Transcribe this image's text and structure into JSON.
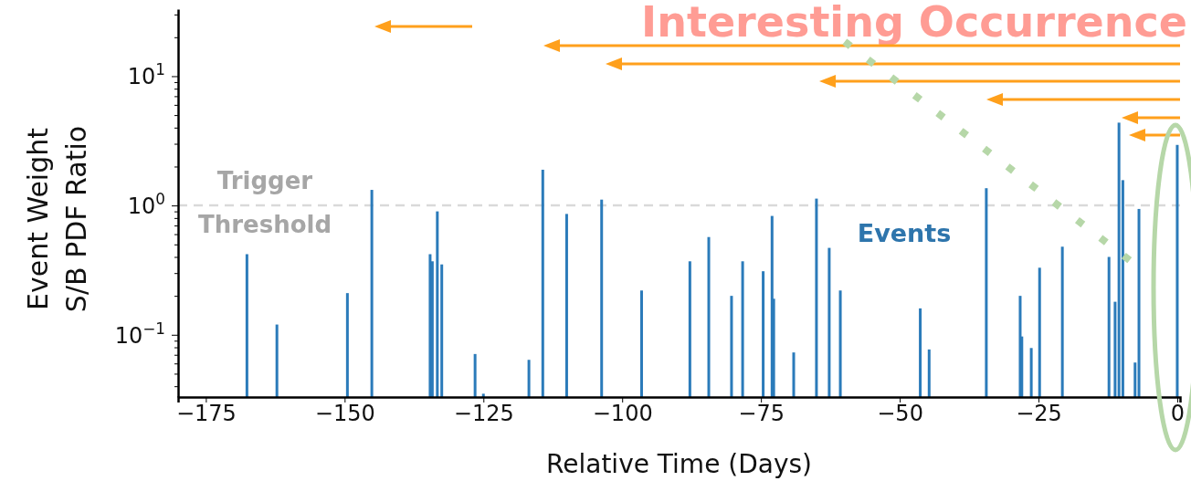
{
  "chart_data": {
    "type": "bar",
    "xlabel": "Relative Time (Days)",
    "ylabel": "Event Weight\nS/B PDF Ratio",
    "log": "y",
    "color": "#2b7bba",
    "x": [
      -167.6,
      -162.2,
      -149.5,
      -145.1,
      -134.6,
      -134.2,
      -133.3,
      -132.5,
      -126.5,
      -125,
      -116.8,
      -114.3,
      -110,
      -103.7,
      -96.5,
      -87.8,
      -84.4,
      -80.3,
      -78.3,
      -74.6,
      -73,
      -72.7,
      -69.1,
      -65,
      -62.7,
      -60.7,
      -46.3,
      -44.7,
      -34.4,
      -28.3,
      -28,
      -26.3,
      -24.8,
      -20.7,
      -12.3,
      -11.2,
      -10.5,
      -9.8,
      -7.6,
      -6.9,
      0
    ],
    "values": [
      0.42,
      0.12,
      0.21,
      1.32,
      0.42,
      0.37,
      0.9,
      0.35,
      0.071,
      0.035,
      0.064,
      1.89,
      0.86,
      1.11,
      0.22,
      0.37,
      0.57,
      0.2,
      0.37,
      0.31,
      0.83,
      0.19,
      0.073,
      1.13,
      0.47,
      0.22,
      0.16,
      0.077,
      1.36,
      0.2,
      0.097,
      0.079,
      0.33,
      0.48,
      0.4,
      0.18,
      4.37,
      1.57,
      0.061,
      0.94,
      2.94
    ],
    "xlim": [
      -180,
      0.5
    ],
    "ylim": [
      0.033,
      33
    ],
    "xticks": [
      {
        "value": -175,
        "label": "−175"
      },
      {
        "value": -150,
        "label": "−150"
      },
      {
        "value": -125,
        "label": "−125"
      },
      {
        "value": -100,
        "label": "−100"
      },
      {
        "value": -75,
        "label": "−75"
      },
      {
        "value": -50,
        "label": "−50"
      },
      {
        "value": -25,
        "label": "−25"
      },
      0
    ],
    "yticks": [
      {
        "value": 0.04,
        "label": null
      },
      {
        "value": 0.05,
        "label": null
      },
      {
        "value": 0.06,
        "label": null
      },
      {
        "value": 0.07,
        "label": null
      },
      {
        "value": 0.08,
        "label": null
      },
      {
        "value": 0.09,
        "label": null
      },
      {
        "value": 0.1,
        "label": "10$^{−1}$"
      },
      {
        "value": 0.2,
        "label": null
      },
      {
        "value": 0.3,
        "label": null
      },
      {
        "value": 0.4,
        "label": null
      },
      {
        "value": 0.5,
        "label": null
      },
      {
        "value": 0.6,
        "label": null
      },
      {
        "value": 0.7,
        "label": null
      },
      {
        "value": 0.8,
        "label": null
      },
      {
        "value": 0.9,
        "label": null
      },
      {
        "value": 1,
        "label": "10$^{0}$"
      },
      {
        "value": 2,
        "label": null
      },
      {
        "value": 3,
        "label": null
      },
      {
        "value": 4,
        "label": null
      },
      {
        "value": 5,
        "label": null
      },
      {
        "value": 6,
        "label": null
      },
      {
        "value": 7,
        "label": null
      },
      {
        "value": 8,
        "label": null
      },
      {
        "value": 9,
        "label": null
      },
      {
        "value": 10,
        "label": "10$^{1}$"
      },
      {
        "value": 20,
        "label": null
      },
      {
        "value": 30,
        "label": null
      }
    ],
    "ref_lines": [
      {
        "axis": "y",
        "value": 1,
        "label": "Trigger Threshold",
        "color": "#d9d9d9",
        "line_style": "dashed"
      }
    ],
    "annotations": [
      "Interesting Occurrence",
      "Events"
    ]
  }
}
